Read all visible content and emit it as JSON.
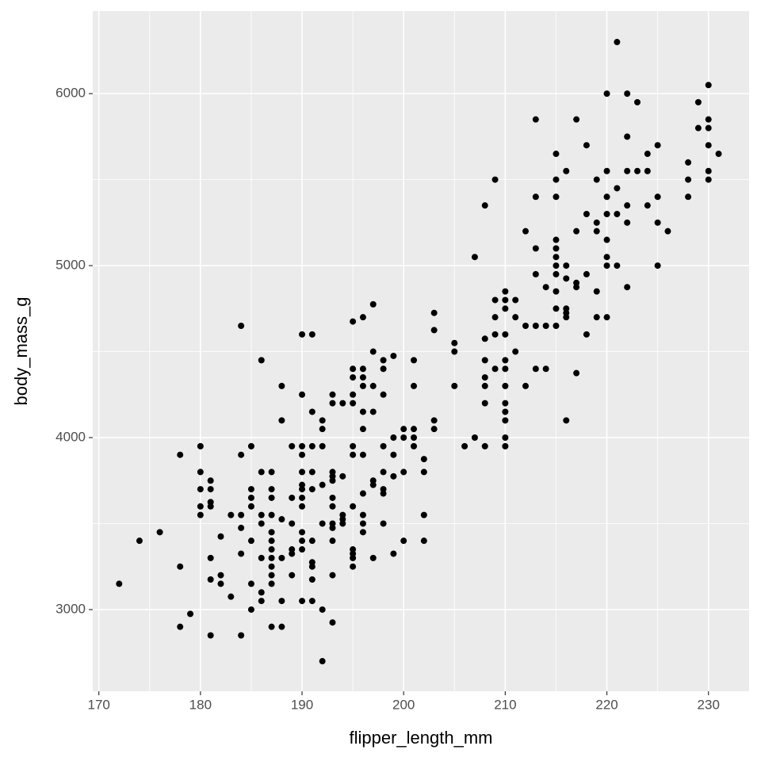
{
  "chart_data": {
    "type": "scatter",
    "x_label": "flipper_length_mm",
    "y_label": "body_mass_g",
    "xlim": [
      169.4,
      234
    ],
    "ylim": [
      2525,
      6480
    ],
    "xticks": [
      170,
      180,
      190,
      200,
      210,
      220,
      230
    ],
    "yticks": [
      3000,
      4000,
      5000,
      6000
    ],
    "x_minor_grid": [
      175,
      185,
      195,
      205,
      215,
      225
    ],
    "y_minor_grid": [
      3500,
      4500,
      5500
    ],
    "grid": true,
    "color": "#000000",
    "x": [
      172,
      174,
      176,
      178,
      178,
      178,
      179,
      180,
      180,
      180,
      180,
      180,
      181,
      181,
      181,
      181,
      181,
      181,
      181,
      182,
      182,
      182,
      183,
      183,
      184,
      184,
      184,
      184,
      184,
      184,
      185,
      185,
      185,
      185,
      185,
      185,
      185,
      186,
      186,
      186,
      186,
      186,
      186,
      186,
      187,
      187,
      187,
      187,
      187,
      187,
      187,
      187,
      187,
      187,
      187,
      187,
      188,
      188,
      188,
      188,
      188,
      188,
      189,
      189,
      189,
      189,
      189,
      189,
      190,
      190,
      190,
      190,
      190,
      190,
      190,
      190,
      190,
      190,
      190,
      190,
      190,
      191,
      191,
      191,
      191,
      191,
      191,
      191,
      191,
      191,
      191,
      192,
      192,
      192,
      192,
      192,
      192,
      192,
      193,
      193,
      193,
      193,
      193,
      193,
      193,
      193,
      193,
      193,
      193,
      193,
      194,
      194,
      194,
      194,
      194,
      195,
      195,
      195,
      195,
      195,
      195,
      195,
      195,
      195,
      195,
      195,
      195,
      196,
      196,
      196,
      196,
      196,
      196,
      196,
      196,
      196,
      196,
      196,
      197,
      197,
      197,
      197,
      197,
      197,
      197,
      198,
      198,
      198,
      198,
      198,
      198,
      198,
      198,
      199,
      199,
      199,
      199,
      199,
      200,
      200,
      200,
      200,
      201,
      201,
      201,
      201,
      201,
      202,
      202,
      202,
      202,
      203,
      203,
      203,
      203,
      205,
      205,
      205,
      206,
      207,
      207,
      208,
      208,
      208,
      208,
      208,
      208,
      208,
      209,
      209,
      209,
      209,
      209,
      210,
      210,
      210,
      210,
      210,
      210,
      210,
      210,
      210,
      210,
      210,
      210,
      211,
      211,
      211,
      212,
      212,
      212,
      213,
      213,
      213,
      213,
      213,
      213,
      214,
      214,
      214,
      215,
      215,
      215,
      215,
      215,
      215,
      215,
      215,
      215,
      215,
      215,
      216,
      216,
      216,
      216,
      216,
      216,
      216,
      217,
      217,
      217,
      217,
      217,
      218,
      218,
      218,
      218,
      219,
      219,
      219,
      219,
      219,
      220,
      220,
      220,
      220,
      220,
      220,
      220,
      220,
      221,
      221,
      221,
      221,
      222,
      222,
      222,
      222,
      222,
      222,
      223,
      223,
      224,
      224,
      224,
      225,
      225,
      225,
      225,
      226,
      228,
      228,
      228,
      229,
      229,
      230,
      230,
      230,
      230,
      230,
      230,
      231
    ],
    "values": [
      3150,
      3400,
      3450,
      3900,
      3250,
      2900,
      2975,
      3950,
      3800,
      3700,
      3600,
      3550,
      3750,
      3700,
      3625,
      3600,
      3300,
      3175,
      2850,
      3425,
      3200,
      3150,
      3550,
      3075,
      4650,
      3900,
      3550,
      3475,
      3325,
      2850,
      3950,
      3700,
      3650,
      3600,
      3400,
      3150,
      3000,
      4450,
      3800,
      3550,
      3500,
      3300,
      3100,
      3050,
      3800,
      3700,
      3650,
      3550,
      3450,
      3400,
      3350,
      3300,
      3250,
      3200,
      3150,
      2900,
      4300,
      4100,
      3525,
      3300,
      3050,
      2900,
      3950,
      3650,
      3500,
      3350,
      3325,
      3200,
      4600,
      4250,
      3950,
      3900,
      3800,
      3725,
      3700,
      3650,
      3600,
      3450,
      3400,
      3350,
      3050,
      4600,
      4150,
      3950,
      3800,
      3700,
      3400,
      3275,
      3250,
      3175,
      3050,
      4100,
      4050,
      3950,
      3725,
      3500,
      3000,
      2700,
      4250,
      4200,
      3800,
      3775,
      3750,
      3650,
      3600,
      3500,
      3475,
      3400,
      3200,
      2925,
      4200,
      3775,
      3550,
      3525,
      3500,
      4675,
      4400,
      4350,
      4250,
      4200,
      3950,
      3900,
      3600,
      3350,
      3325,
      3300,
      3250,
      4700,
      4400,
      4350,
      4300,
      4150,
      4050,
      3900,
      3675,
      3550,
      3500,
      3450,
      4775,
      4500,
      4300,
      4150,
      3750,
      3725,
      3300,
      4450,
      4400,
      4250,
      3950,
      3800,
      3700,
      3675,
      3500,
      4475,
      4000,
      3900,
      3775,
      3325,
      4050,
      4000,
      3800,
      3400,
      4450,
      4300,
      4050,
      4000,
      3950,
      3875,
      3800,
      3550,
      3400,
      4725,
      4625,
      4100,
      4050,
      4550,
      4500,
      4300,
      3950,
      5050,
      4000,
      5350,
      4575,
      4450,
      4350,
      4300,
      4200,
      3950,
      5500,
      4800,
      4700,
      4600,
      4400,
      4850,
      4800,
      4750,
      4600,
      4450,
      4400,
      4300,
      4200,
      4150,
      4100,
      4000,
      3950,
      4800,
      4700,
      4500,
      5200,
      4650,
      4300,
      5850,
      5400,
      5100,
      4950,
      4650,
      4400,
      4875,
      4650,
      4400,
      5650,
      5500,
      5400,
      5150,
      5100,
      5050,
      5000,
      4950,
      4850,
      4750,
      4650,
      5550,
      5000,
      4925,
      4750,
      4725,
      4700,
      4100,
      5850,
      5200,
      4900,
      4875,
      4375,
      5700,
      5300,
      4950,
      4600,
      5500,
      5250,
      5200,
      4850,
      4700,
      6000,
      5550,
      5400,
      5300,
      5150,
      5050,
      5000,
      4700,
      6300,
      5450,
      5300,
      5000,
      6000,
      5750,
      5550,
      5350,
      5250,
      4875,
      5950,
      5550,
      5650,
      5550,
      5350,
      5700,
      5400,
      5250,
      5000,
      5200,
      5600,
      5500,
      5400,
      5950,
      5800,
      6050,
      5850,
      5800,
      5700,
      5550,
      5500,
      5650
    ]
  }
}
